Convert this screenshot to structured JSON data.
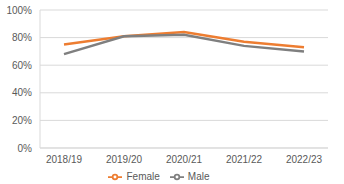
{
  "chart_data": {
    "type": "line",
    "categories": [
      "2018/19",
      "2019/20",
      "2020/21",
      "2021/22",
      "2022/23"
    ],
    "series": [
      {
        "name": "Female",
        "color": "#ed7d31",
        "values": [
          75,
          81,
          84,
          77,
          73
        ]
      },
      {
        "name": "Male",
        "color": "#7f7f7f",
        "values": [
          68,
          81,
          82,
          74,
          70
        ]
      }
    ],
    "ylim": [
      0,
      100
    ],
    "yticks": [
      {
        "value": 0,
        "label": "0%"
      },
      {
        "value": 20,
        "label": "20%"
      },
      {
        "value": 40,
        "label": "40%"
      },
      {
        "value": 60,
        "label": "60%"
      },
      {
        "value": 80,
        "label": "80%"
      },
      {
        "value": 100,
        "label": "100%"
      }
    ],
    "grid": true,
    "legend": "bottom"
  }
}
